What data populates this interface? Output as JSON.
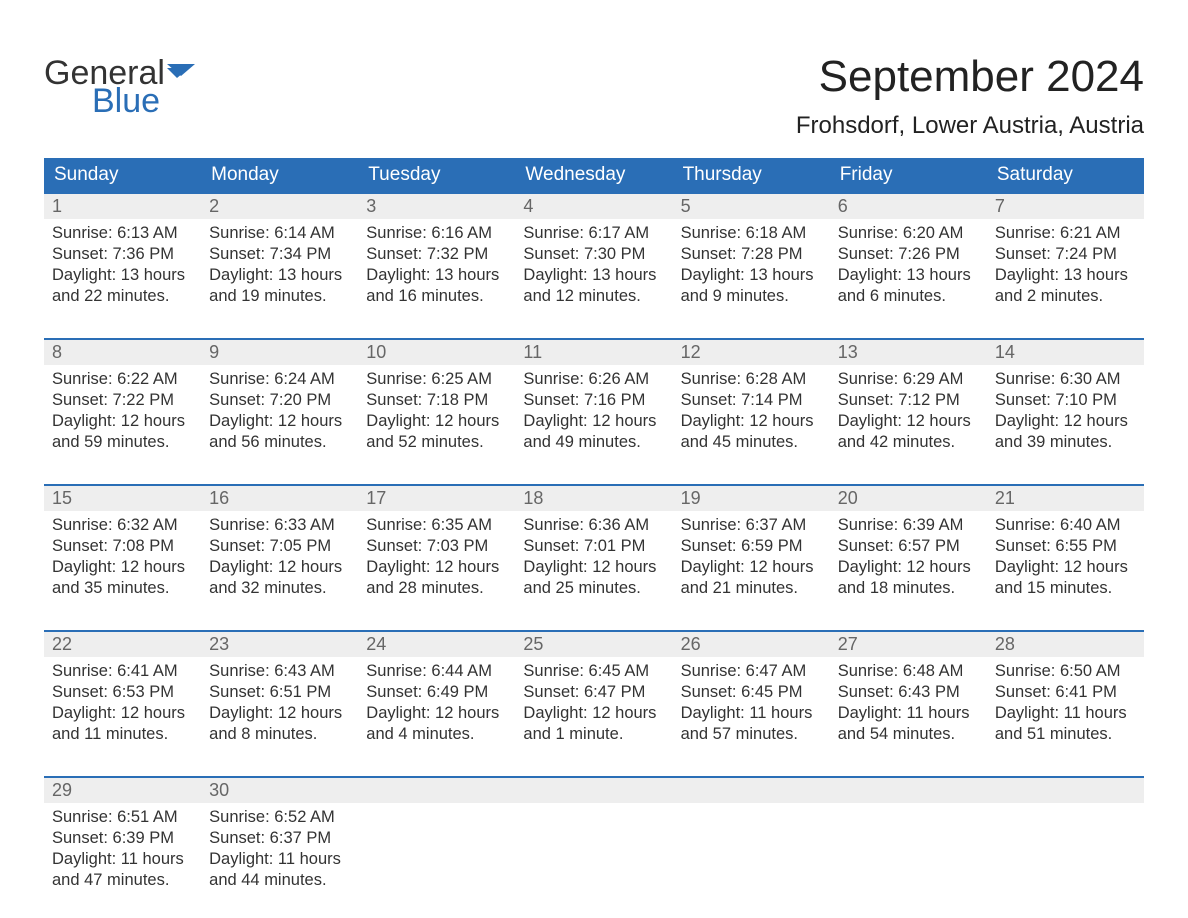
{
  "brand": {
    "word1": "General",
    "word2": "Blue",
    "word1_color": "#333333",
    "word2_color": "#2a6eb6",
    "flag_color": "#2a6eb6"
  },
  "header": {
    "month_title": "September 2024",
    "location": "Frohsdorf, Lower Austria, Austria",
    "title_fontsize": 44,
    "location_fontsize": 24
  },
  "calendar": {
    "type": "table",
    "header_bg": "#2a6eb6",
    "header_fg": "#ffffff",
    "daynum_bg": "#eeeeee",
    "daynum_fg": "#666666",
    "cell_border_top": "#2a6eb6",
    "text_color": "#333333",
    "background_color": "#ffffff",
    "day_labels": [
      "Sunday",
      "Monday",
      "Tuesday",
      "Wednesday",
      "Thursday",
      "Friday",
      "Saturday"
    ],
    "weeks": [
      [
        {
          "num": "1",
          "sunrise": "Sunrise: 6:13 AM",
          "sunset": "Sunset: 7:36 PM",
          "daylight": "Daylight: 13 hours and 22 minutes."
        },
        {
          "num": "2",
          "sunrise": "Sunrise: 6:14 AM",
          "sunset": "Sunset: 7:34 PM",
          "daylight": "Daylight: 13 hours and 19 minutes."
        },
        {
          "num": "3",
          "sunrise": "Sunrise: 6:16 AM",
          "sunset": "Sunset: 7:32 PM",
          "daylight": "Daylight: 13 hours and 16 minutes."
        },
        {
          "num": "4",
          "sunrise": "Sunrise: 6:17 AM",
          "sunset": "Sunset: 7:30 PM",
          "daylight": "Daylight: 13 hours and 12 minutes."
        },
        {
          "num": "5",
          "sunrise": "Sunrise: 6:18 AM",
          "sunset": "Sunset: 7:28 PM",
          "daylight": "Daylight: 13 hours and 9 minutes."
        },
        {
          "num": "6",
          "sunrise": "Sunrise: 6:20 AM",
          "sunset": "Sunset: 7:26 PM",
          "daylight": "Daylight: 13 hours and 6 minutes."
        },
        {
          "num": "7",
          "sunrise": "Sunrise: 6:21 AM",
          "sunset": "Sunset: 7:24 PM",
          "daylight": "Daylight: 13 hours and 2 minutes."
        }
      ],
      [
        {
          "num": "8",
          "sunrise": "Sunrise: 6:22 AM",
          "sunset": "Sunset: 7:22 PM",
          "daylight": "Daylight: 12 hours and 59 minutes."
        },
        {
          "num": "9",
          "sunrise": "Sunrise: 6:24 AM",
          "sunset": "Sunset: 7:20 PM",
          "daylight": "Daylight: 12 hours and 56 minutes."
        },
        {
          "num": "10",
          "sunrise": "Sunrise: 6:25 AM",
          "sunset": "Sunset: 7:18 PM",
          "daylight": "Daylight: 12 hours and 52 minutes."
        },
        {
          "num": "11",
          "sunrise": "Sunrise: 6:26 AM",
          "sunset": "Sunset: 7:16 PM",
          "daylight": "Daylight: 12 hours and 49 minutes."
        },
        {
          "num": "12",
          "sunrise": "Sunrise: 6:28 AM",
          "sunset": "Sunset: 7:14 PM",
          "daylight": "Daylight: 12 hours and 45 minutes."
        },
        {
          "num": "13",
          "sunrise": "Sunrise: 6:29 AM",
          "sunset": "Sunset: 7:12 PM",
          "daylight": "Daylight: 12 hours and 42 minutes."
        },
        {
          "num": "14",
          "sunrise": "Sunrise: 6:30 AM",
          "sunset": "Sunset: 7:10 PM",
          "daylight": "Daylight: 12 hours and 39 minutes."
        }
      ],
      [
        {
          "num": "15",
          "sunrise": "Sunrise: 6:32 AM",
          "sunset": "Sunset: 7:08 PM",
          "daylight": "Daylight: 12 hours and 35 minutes."
        },
        {
          "num": "16",
          "sunrise": "Sunrise: 6:33 AM",
          "sunset": "Sunset: 7:05 PM",
          "daylight": "Daylight: 12 hours and 32 minutes."
        },
        {
          "num": "17",
          "sunrise": "Sunrise: 6:35 AM",
          "sunset": "Sunset: 7:03 PM",
          "daylight": "Daylight: 12 hours and 28 minutes."
        },
        {
          "num": "18",
          "sunrise": "Sunrise: 6:36 AM",
          "sunset": "Sunset: 7:01 PM",
          "daylight": "Daylight: 12 hours and 25 minutes."
        },
        {
          "num": "19",
          "sunrise": "Sunrise: 6:37 AM",
          "sunset": "Sunset: 6:59 PM",
          "daylight": "Daylight: 12 hours and 21 minutes."
        },
        {
          "num": "20",
          "sunrise": "Sunrise: 6:39 AM",
          "sunset": "Sunset: 6:57 PM",
          "daylight": "Daylight: 12 hours and 18 minutes."
        },
        {
          "num": "21",
          "sunrise": "Sunrise: 6:40 AM",
          "sunset": "Sunset: 6:55 PM",
          "daylight": "Daylight: 12 hours and 15 minutes."
        }
      ],
      [
        {
          "num": "22",
          "sunrise": "Sunrise: 6:41 AM",
          "sunset": "Sunset: 6:53 PM",
          "daylight": "Daylight: 12 hours and 11 minutes."
        },
        {
          "num": "23",
          "sunrise": "Sunrise: 6:43 AM",
          "sunset": "Sunset: 6:51 PM",
          "daylight": "Daylight: 12 hours and 8 minutes."
        },
        {
          "num": "24",
          "sunrise": "Sunrise: 6:44 AM",
          "sunset": "Sunset: 6:49 PM",
          "daylight": "Daylight: 12 hours and 4 minutes."
        },
        {
          "num": "25",
          "sunrise": "Sunrise: 6:45 AM",
          "sunset": "Sunset: 6:47 PM",
          "daylight": "Daylight: 12 hours and 1 minute."
        },
        {
          "num": "26",
          "sunrise": "Sunrise: 6:47 AM",
          "sunset": "Sunset: 6:45 PM",
          "daylight": "Daylight: 11 hours and 57 minutes."
        },
        {
          "num": "27",
          "sunrise": "Sunrise: 6:48 AM",
          "sunset": "Sunset: 6:43 PM",
          "daylight": "Daylight: 11 hours and 54 minutes."
        },
        {
          "num": "28",
          "sunrise": "Sunrise: 6:50 AM",
          "sunset": "Sunset: 6:41 PM",
          "daylight": "Daylight: 11 hours and 51 minutes."
        }
      ],
      [
        {
          "num": "29",
          "sunrise": "Sunrise: 6:51 AM",
          "sunset": "Sunset: 6:39 PM",
          "daylight": "Daylight: 11 hours and 47 minutes."
        },
        {
          "num": "30",
          "sunrise": "Sunrise: 6:52 AM",
          "sunset": "Sunset: 6:37 PM",
          "daylight": "Daylight: 11 hours and 44 minutes."
        },
        null,
        null,
        null,
        null,
        null
      ]
    ]
  }
}
